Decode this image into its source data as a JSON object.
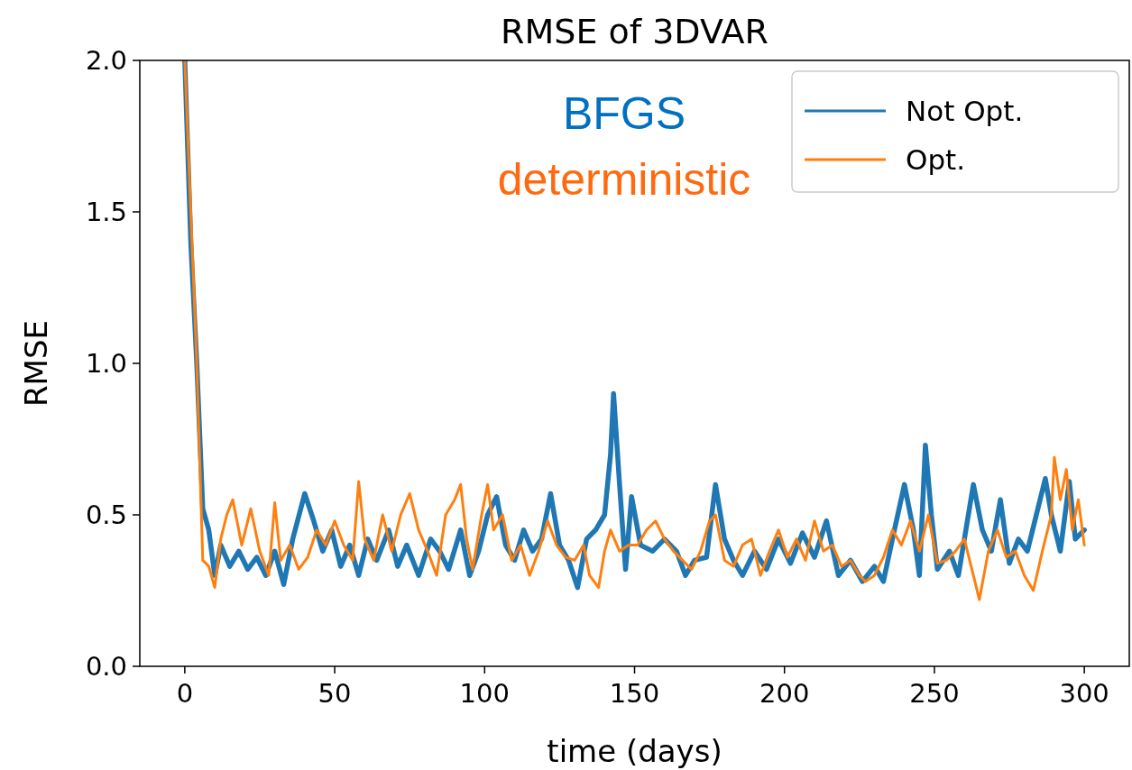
{
  "chart_data": {
    "type": "line",
    "title": "RMSE of 3DVAR",
    "xlabel": "time (days)",
    "ylabel": "RMSE",
    "annotations": [
      "BFGS",
      "deterministic"
    ],
    "xlim": [
      -15,
      315
    ],
    "xticks": [
      0,
      50,
      100,
      150,
      200,
      250,
      300
    ],
    "ylim": [
      0,
      2
    ],
    "yticks": [
      {
        "value": 0,
        "label": "0.0"
      },
      {
        "value": 0.5,
        "label": "0.5"
      },
      {
        "value": 1,
        "label": "1.0"
      },
      {
        "value": 1.5,
        "label": "1.5"
      },
      {
        "value": 2,
        "label": "2.0"
      }
    ],
    "grid": false,
    "legend": "top right",
    "series": [
      {
        "name": "Not Opt.",
        "color": "#1f77b4",
        "x": [
          0,
          2,
          4,
          6,
          8,
          10,
          12,
          15,
          18,
          21,
          24,
          27,
          30,
          33,
          36,
          40,
          43,
          46,
          49,
          52,
          55,
          58,
          61,
          64,
          68,
          71,
          74,
          78,
          82,
          85,
          88,
          92,
          95,
          98,
          101,
          104,
          107,
          110,
          113,
          116,
          119,
          122,
          125,
          128,
          131,
          134,
          137,
          140,
          142,
          143,
          145,
          147,
          149,
          152,
          156,
          160,
          164,
          167,
          170,
          174,
          177,
          180,
          183,
          186,
          190,
          194,
          198,
          202,
          206,
          210,
          214,
          218,
          222,
          226,
          230,
          233,
          236,
          240,
          243,
          245,
          247,
          249,
          251,
          255,
          258,
          261,
          263,
          266,
          269,
          272,
          275,
          278,
          281,
          284,
          287,
          289,
          292,
          295,
          297,
          300
        ],
        "values": [
          2.0,
          1.4,
          1.0,
          0.52,
          0.45,
          0.3,
          0.4,
          0.33,
          0.38,
          0.32,
          0.36,
          0.3,
          0.38,
          0.27,
          0.42,
          0.57,
          0.48,
          0.38,
          0.45,
          0.33,
          0.4,
          0.3,
          0.42,
          0.35,
          0.45,
          0.33,
          0.4,
          0.3,
          0.42,
          0.38,
          0.32,
          0.45,
          0.3,
          0.38,
          0.5,
          0.56,
          0.4,
          0.35,
          0.45,
          0.38,
          0.42,
          0.57,
          0.4,
          0.35,
          0.26,
          0.42,
          0.45,
          0.5,
          0.7,
          0.9,
          0.6,
          0.32,
          0.56,
          0.4,
          0.38,
          0.42,
          0.38,
          0.3,
          0.35,
          0.36,
          0.6,
          0.42,
          0.35,
          0.3,
          0.38,
          0.32,
          0.42,
          0.34,
          0.44,
          0.36,
          0.48,
          0.3,
          0.35,
          0.28,
          0.33,
          0.28,
          0.42,
          0.6,
          0.45,
          0.3,
          0.73,
          0.5,
          0.32,
          0.38,
          0.3,
          0.48,
          0.6,
          0.45,
          0.38,
          0.55,
          0.34,
          0.42,
          0.38,
          0.5,
          0.62,
          0.5,
          0.38,
          0.61,
          0.42,
          0.45
        ]
      },
      {
        "name": "Opt.",
        "color": "#ff7f0e",
        "x": [
          0,
          2,
          4,
          6,
          8,
          10,
          12,
          14,
          16,
          19,
          22,
          25,
          28,
          30,
          32,
          35,
          38,
          41,
          44,
          47,
          50,
          53,
          56,
          58,
          60,
          63,
          66,
          69,
          72,
          75,
          78,
          81,
          84,
          87,
          90,
          92,
          94,
          96,
          99,
          101,
          103,
          106,
          109,
          112,
          115,
          118,
          121,
          124,
          127,
          130,
          133,
          135,
          138,
          140,
          142,
          145,
          148,
          151,
          154,
          157,
          160,
          163,
          166,
          169,
          172,
          175,
          177,
          180,
          183,
          186,
          189,
          192,
          195,
          198,
          201,
          204,
          207,
          210,
          213,
          216,
          219,
          222,
          225,
          227,
          230,
          233,
          236,
          239,
          242,
          245,
          248,
          251,
          254,
          257,
          260,
          263,
          265,
          268,
          271,
          274,
          277,
          280,
          283,
          286,
          289,
          290,
          292,
          294,
          296,
          298,
          300
        ],
        "values": [
          2.0,
          1.5,
          1.0,
          0.35,
          0.33,
          0.26,
          0.42,
          0.5,
          0.55,
          0.4,
          0.52,
          0.38,
          0.3,
          0.54,
          0.35,
          0.4,
          0.32,
          0.36,
          0.45,
          0.4,
          0.48,
          0.4,
          0.35,
          0.61,
          0.42,
          0.35,
          0.5,
          0.38,
          0.5,
          0.57,
          0.45,
          0.38,
          0.3,
          0.5,
          0.55,
          0.6,
          0.42,
          0.32,
          0.5,
          0.6,
          0.45,
          0.5,
          0.35,
          0.4,
          0.3,
          0.38,
          0.48,
          0.4,
          0.36,
          0.35,
          0.4,
          0.3,
          0.26,
          0.38,
          0.45,
          0.38,
          0.4,
          0.4,
          0.45,
          0.48,
          0.42,
          0.38,
          0.35,
          0.32,
          0.38,
          0.48,
          0.5,
          0.35,
          0.33,
          0.4,
          0.42,
          0.3,
          0.38,
          0.45,
          0.36,
          0.42,
          0.35,
          0.48,
          0.38,
          0.4,
          0.33,
          0.35,
          0.3,
          0.28,
          0.3,
          0.36,
          0.45,
          0.4,
          0.48,
          0.38,
          0.5,
          0.34,
          0.35,
          0.38,
          0.42,
          0.3,
          0.22,
          0.38,
          0.45,
          0.36,
          0.38,
          0.3,
          0.25,
          0.38,
          0.5,
          0.69,
          0.55,
          0.65,
          0.45,
          0.55,
          0.4
        ]
      }
    ]
  }
}
